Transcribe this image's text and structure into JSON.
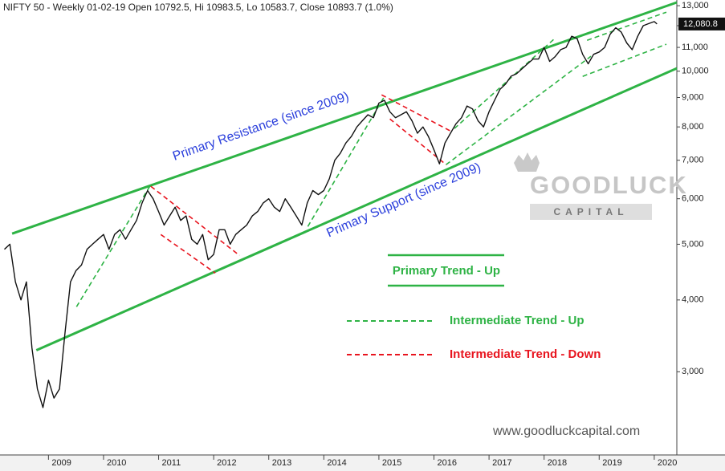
{
  "chart_data": {
    "type": "line",
    "title": "NIFTY 50 - Weekly 01-02-19 Open 10792.5, Hi 10983.5, Lo 10583.7, Close 10893.7 (1.0%)",
    "log_scale": true,
    "xlim": [
      2008.12,
      2020.41
    ],
    "xticks": [
      2009,
      2010,
      2011,
      2012,
      2013,
      2014,
      2015,
      2016,
      2017,
      2018,
      2019,
      2020
    ],
    "ylim": [
      2150,
      13300
    ],
    "yticks": [
      {
        "value": 3000,
        "label": "3,000"
      },
      {
        "value": 4000,
        "label": "4,000"
      },
      {
        "value": 5000,
        "label": "5,000"
      },
      {
        "value": 6000,
        "label": "6,000"
      },
      {
        "value": 7000,
        "label": "7,000"
      },
      {
        "value": 8000,
        "label": "8,000"
      },
      {
        "value": 9000,
        "label": "9,000"
      },
      {
        "value": 10000,
        "label": "10,000"
      },
      {
        "value": 11000,
        "label": "11,000"
      },
      {
        "value": 12000,
        "label": "12,000"
      },
      {
        "value": 13000,
        "label": "13,000"
      }
    ],
    "last_price": {
      "value": 12080.8,
      "label": "12,080.8"
    },
    "series": [
      {
        "name": "NIFTY 50",
        "color": "#111111",
        "x": [
          2008.2,
          2008.3,
          2008.4,
          2008.5,
          2008.6,
          2008.7,
          2008.8,
          2008.9,
          2009.0,
          2009.1,
          2009.2,
          2009.3,
          2009.4,
          2009.5,
          2009.6,
          2009.7,
          2009.8,
          2009.9,
          2010.0,
          2010.1,
          2010.2,
          2010.3,
          2010.4,
          2010.5,
          2010.6,
          2010.7,
          2010.8,
          2010.9,
          2011.0,
          2011.1,
          2011.2,
          2011.3,
          2011.4,
          2011.5,
          2011.6,
          2011.7,
          2011.8,
          2011.9,
          2012.0,
          2012.1,
          2012.2,
          2012.3,
          2012.4,
          2012.5,
          2012.6,
          2012.7,
          2012.8,
          2012.9,
          2013.0,
          2013.1,
          2013.2,
          2013.3,
          2013.4,
          2013.5,
          2013.6,
          2013.7,
          2013.8,
          2013.9,
          2014.0,
          2014.1,
          2014.2,
          2014.3,
          2014.4,
          2014.5,
          2014.6,
          2014.7,
          2014.8,
          2014.9,
          2015.0,
          2015.1,
          2015.2,
          2015.3,
          2015.4,
          2015.5,
          2015.6,
          2015.7,
          2015.8,
          2015.9,
          2016.0,
          2016.1,
          2016.2,
          2016.3,
          2016.4,
          2016.5,
          2016.6,
          2016.7,
          2016.8,
          2016.9,
          2017.0,
          2017.1,
          2017.2,
          2017.3,
          2017.4,
          2017.5,
          2017.6,
          2017.7,
          2017.8,
          2017.9,
          2018.0,
          2018.1,
          2018.2,
          2018.3,
          2018.4,
          2018.5,
          2018.6,
          2018.7,
          2018.8,
          2018.9,
          2019.0,
          2019.1,
          2019.2,
          2019.3,
          2019.4,
          2019.5,
          2019.6,
          2019.7,
          2019.8,
          2019.9,
          2020.0,
          2020.05
        ],
        "values": [
          4900,
          5000,
          4300,
          4000,
          4300,
          3300,
          2800,
          2600,
          2900,
          2700,
          2800,
          3500,
          4300,
          4500,
          4600,
          4900,
          5000,
          5100,
          5200,
          4900,
          5200,
          5300,
          5100,
          5300,
          5500,
          5900,
          6200,
          6000,
          5700,
          5400,
          5600,
          5800,
          5500,
          5600,
          5100,
          5000,
          5200,
          4700,
          4800,
          5300,
          5300,
          5000,
          5200,
          5300,
          5400,
          5600,
          5700,
          5900,
          6000,
          5800,
          5700,
          6000,
          5800,
          5600,
          5400,
          5900,
          6200,
          6100,
          6200,
          6500,
          7000,
          7200,
          7500,
          7700,
          8000,
          8200,
          8400,
          8300,
          8800,
          8900,
          8500,
          8300,
          8400,
          8500,
          8200,
          7800,
          8000,
          7700,
          7300,
          6900,
          7500,
          7800,
          8100,
          8300,
          8700,
          8600,
          8200,
          8000,
          8500,
          8900,
          9300,
          9500,
          9800,
          9900,
          10100,
          10300,
          10500,
          10500,
          11000,
          10400,
          10600,
          10900,
          11000,
          11500,
          11400,
          10700,
          10300,
          10700,
          10800,
          11000,
          11600,
          11900,
          11700,
          11200,
          10900,
          11500,
          12000,
          12100,
          12200,
          12080.8
        ]
      }
    ],
    "trendlines": [
      {
        "name": "Primary Trend - Up",
        "color": "#2eb345",
        "style": "solid",
        "lines": [
          {
            "x": [
              2008.34,
              2020.41
            ],
            "y": [
              5216,
              13173
            ],
            "label": "Primary Resistance (since 2009)"
          },
          {
            "x": [
              2008.78,
              2020.41
            ],
            "y": [
              3270,
              10117
            ],
            "label": "Primary Support (since 2009)"
          }
        ]
      },
      {
        "name": "Intermediate Trend - Up",
        "color": "#2eb345",
        "style": "dashed",
        "lines": [
          {
            "x": [
              2009.51,
              2010.84
            ],
            "y": [
              3893,
              6306
            ]
          },
          {
            "x": [
              2013.71,
              2015.1
            ],
            "y": [
              5368,
              9037
            ]
          },
          {
            "x": [
              2016.37,
              2018.19
            ],
            "y": [
              7947,
              11393
            ]
          },
          {
            "x": [
              2016.22,
              2018.85
            ],
            "y": [
              6878,
              10614
            ]
          },
          {
            "x": [
              2018.78,
              2020.22
            ],
            "y": [
              11320,
              12667
            ]
          },
          {
            "x": [
              2018.7,
              2020.22
            ],
            "y": [
              9795,
              11140
            ]
          }
        ]
      },
      {
        "name": "Intermediate Trend - Down",
        "color": "#e8141e",
        "style": "dashed",
        "lines": [
          {
            "x": [
              2010.86,
              2012.47
            ],
            "y": [
              6306,
              4780
            ]
          },
          {
            "x": [
              2011.04,
              2012.03
            ],
            "y": [
              5199,
              4455
            ]
          },
          {
            "x": [
              2015.05,
              2016.3
            ],
            "y": [
              9096,
              7870
            ]
          },
          {
            "x": [
              2015.2,
              2016.22
            ],
            "y": [
              8260,
              6878
            ]
          }
        ]
      }
    ],
    "annotation_color": "#2b3fdc",
    "watermark": {
      "brand": "GOODLUCK",
      "tagline": "CAPITAL",
      "url": "www.goodluckcapital.com"
    }
  }
}
